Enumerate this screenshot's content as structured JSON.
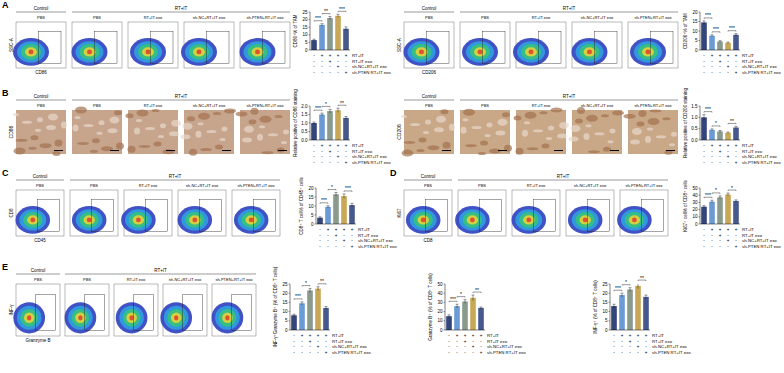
{
  "headers": [
    "Control",
    "RT+IT"
  ],
  "groups": [
    "PBS",
    "PBS",
    "RT+IT exo",
    "sh-NC+RT+IT exo",
    "sh-PTEN+RT+IT exo"
  ],
  "group_table": [
    {
      "label": "RT+IT",
      "marks": [
        "-",
        "+",
        "+",
        "+",
        "+"
      ]
    },
    {
      "label": "RT+IT exo",
      "marks": [
        "-",
        "-",
        "+",
        "-",
        "-"
      ]
    },
    {
      "label": "sh-NC+RT+IT exo",
      "marks": [
        "-",
        "-",
        "-",
        "+",
        "-"
      ]
    },
    {
      "label": "sh-PTEN RT+IT exo",
      "marks": [
        "-",
        "-",
        "-",
        "-",
        "+"
      ]
    }
  ],
  "image_panels": [
    {
      "letter": "A",
      "kind": "flow",
      "y_label": "SSC-A",
      "x_label": "CD86"
    },
    {
      "kind": "flow",
      "y_label": "SSC-A",
      "x_label": "CD206"
    },
    {
      "letter": "B",
      "kind": "ihc",
      "stain": "CD86"
    },
    {
      "kind": "ihc",
      "stain": "CD206"
    },
    {
      "letter": "C",
      "kind": "flow",
      "y_label": "CD8",
      "x_label": "CD45"
    },
    {
      "letter": "D",
      "kind": "flow",
      "y_label": "Ki67",
      "x_label": "CD8"
    },
    {
      "letter": "E",
      "kind": "flow",
      "y_label": "INF-γ",
      "x_label": "Granzyme B"
    }
  ],
  "chart_data": [
    {
      "type": "bar",
      "y_label": "CD86⁺% of TAM",
      "categories": [
        null,
        null,
        null,
        null,
        null
      ],
      "values": [
        6.5,
        16.5,
        21,
        22.5,
        14
      ],
      "errors": [
        0.6,
        0.8,
        1,
        1,
        1.2
      ],
      "colors": [
        "#34457a",
        "#6a9bd4",
        "#8a9a8c",
        "#c8a856",
        "#47598c"
      ],
      "ylim": [
        0,
        25
      ],
      "yticks": [
        0,
        5,
        10,
        15,
        20,
        25
      ],
      "grid": false,
      "annotations": [
        {
          "text": "***",
          "between": [
            0,
            1
          ]
        },
        {
          "text": "**",
          "between": [
            1,
            2
          ]
        },
        {
          "text": "***",
          "between": [
            3,
            4
          ]
        }
      ]
    },
    {
      "type": "bar",
      "y_label": "CD206⁺% of TAM",
      "categories": [
        null,
        null,
        null,
        null,
        null
      ],
      "values": [
        14.5,
        7.5,
        4.5,
        3.8,
        8
      ],
      "errors": [
        0.8,
        0.5,
        0.4,
        0.4,
        0.6
      ],
      "colors": [
        "#34457a",
        "#6a9bd4",
        "#8a9a8c",
        "#c8a856",
        "#47598c"
      ],
      "ylim": [
        0,
        20
      ],
      "yticks": [
        0,
        5,
        10,
        15,
        20
      ],
      "grid": false,
      "annotations": [
        {
          "text": "***",
          "between": [
            0,
            1
          ]
        },
        {
          "text": "***",
          "between": [
            1,
            2
          ]
        },
        {
          "text": "***",
          "between": [
            3,
            4
          ]
        }
      ]
    },
    {
      "type": "bar",
      "y_label": "Relative positive of CD86 staining",
      "categories": [
        null,
        null,
        null,
        null,
        null
      ],
      "values": [
        1.0,
        1.5,
        1.7,
        1.75,
        1.3
      ],
      "errors": [
        0.06,
        0.08,
        0.1,
        0.12,
        0.08
      ],
      "colors": [
        "#34457a",
        "#6a9bd4",
        "#8a9a8c",
        "#c8a856",
        "#47598c"
      ],
      "ylim": [
        0,
        2
      ],
      "yticks": [
        {
          "value": 0,
          "label": "0.0"
        },
        {
          "value": 0.5,
          "label": "0.5"
        },
        {
          "value": 1,
          "label": "1.0"
        },
        {
          "value": 1.5,
          "label": "1.5"
        },
        {
          "value": 2,
          "label": "2.0"
        }
      ],
      "grid": false,
      "annotations": [
        {
          "text": "***",
          "between": [
            0,
            1
          ]
        },
        {
          "text": "*",
          "between": [
            1,
            2
          ]
        },
        {
          "text": "**",
          "between": [
            3,
            4
          ]
        }
      ]
    },
    {
      "type": "bar",
      "y_label": "Relative positive of CD206 staining",
      "categories": [
        null,
        null,
        null,
        null,
        null
      ],
      "values": [
        1.0,
        0.45,
        0.38,
        0.32,
        0.55
      ],
      "errors": [
        0.12,
        0.04,
        0.04,
        0.03,
        0.05
      ],
      "colors": [
        "#34457a",
        "#6a9bd4",
        "#8a9a8c",
        "#c8a856",
        "#47598c"
      ],
      "ylim": [
        0,
        1.5
      ],
      "yticks": [
        {
          "value": 0,
          "label": "0.0"
        },
        {
          "value": 0.5,
          "label": "0.5"
        },
        {
          "value": 1,
          "label": "1.0"
        },
        {
          "value": 1.5,
          "label": "1.5"
        }
      ],
      "grid": false,
      "annotations": [
        {
          "text": "***",
          "between": [
            0,
            1
          ]
        },
        {
          "text": "*",
          "between": [
            1,
            2
          ]
        },
        {
          "text": "**",
          "between": [
            3,
            4
          ]
        }
      ]
    },
    {
      "type": "bar",
      "y_label": "CD8⁺ T cell% of CD45⁺ cells",
      "categories": [
        null,
        null,
        null,
        null,
        null
      ],
      "values": [
        3.5,
        9.5,
        16.5,
        15.5,
        10.5
      ],
      "errors": [
        0.5,
        0.6,
        1,
        1.2,
        1
      ],
      "colors": [
        "#34457a",
        "#6a9bd4",
        "#8a9a8c",
        "#c8a856",
        "#47598c"
      ],
      "ylim": [
        0,
        20
      ],
      "yticks": [
        0,
        5,
        10,
        15,
        20
      ],
      "grid": false,
      "annotations": [
        {
          "text": "***",
          "between": [
            0,
            1
          ]
        },
        {
          "text": "*",
          "between": [
            1,
            2
          ]
        },
        {
          "text": "***",
          "between": [
            3,
            4
          ]
        }
      ]
    },
    {
      "type": "bar",
      "y_label": "Ki67⁺ cell% of CD8⁺ cells",
      "categories": [
        null,
        null,
        null,
        null,
        null
      ],
      "values": [
        24,
        31,
        37,
        41,
        32
      ],
      "errors": [
        1.5,
        2,
        2,
        2,
        1.5
      ],
      "colors": [
        "#34457a",
        "#6a9bd4",
        "#8a9a8c",
        "#c8a856",
        "#47598c"
      ],
      "ylim": [
        0,
        50
      ],
      "yticks": [
        0,
        10,
        20,
        30,
        40,
        50
      ],
      "grid": false,
      "annotations": [
        {
          "text": "***",
          "between": [
            0,
            1
          ]
        },
        {
          "text": "*",
          "between": [
            1,
            2
          ]
        },
        {
          "text": "*",
          "between": [
            3,
            4
          ]
        }
      ]
    },
    {
      "type": "bar",
      "y_label": "INF-γ⁺Granzyme B⁺ (% of CD8⁺ T cells)",
      "categories": [
        null,
        null,
        null,
        null,
        null
      ],
      "values": [
        8,
        14.5,
        21.5,
        22.5,
        12
      ],
      "errors": [
        0.6,
        0.8,
        1,
        1,
        0.8
      ],
      "colors": [
        "#34457a",
        "#6a9bd4",
        "#8a9a8c",
        "#c8a856",
        "#47598c"
      ],
      "ylim": [
        0,
        25
      ],
      "yticks": [
        0,
        5,
        10,
        15,
        20,
        25
      ],
      "grid": false,
      "annotations": [
        {
          "text": "***",
          "between": [
            0,
            1
          ]
        },
        {
          "text": "*",
          "between": [
            1,
            2
          ]
        },
        {
          "text": "**",
          "between": [
            3,
            4
          ]
        }
      ]
    },
    {
      "type": "bar",
      "y_label": "Granzyme B⁺ (% of CD8⁺ T cells)",
      "categories": [
        null,
        null,
        null,
        null,
        null
      ],
      "values": [
        15,
        26,
        31,
        35,
        24
      ],
      "errors": [
        1.5,
        2,
        2,
        3,
        1
      ],
      "colors": [
        "#34457a",
        "#6a9bd4",
        "#8a9a8c",
        "#c8a856",
        "#47598c"
      ],
      "ylim": [
        0,
        50
      ],
      "yticks": [
        0,
        10,
        20,
        30,
        40,
        50
      ],
      "grid": false,
      "annotations": [
        {
          "text": "***",
          "between": [
            0,
            1
          ]
        },
        {
          "text": "*",
          "between": [
            1,
            2
          ]
        },
        {
          "text": "**",
          "between": [
            3,
            4
          ]
        }
      ]
    },
    {
      "type": "bar",
      "y_label": "INF-γ⁺ (% of CD8⁺ T cells)",
      "categories": [
        null,
        null,
        null,
        null,
        null
      ],
      "values": [
        13,
        19,
        22,
        24,
        18
      ],
      "errors": [
        1,
        1,
        1,
        1.5,
        1
      ],
      "colors": [
        "#34457a",
        "#6a9bd4",
        "#8a9a8c",
        "#c8a856",
        "#47598c"
      ],
      "ylim": [
        0,
        25
      ],
      "yticks": [
        0,
        5,
        10,
        15,
        20,
        25
      ],
      "grid": false,
      "annotations": [
        {
          "text": "***",
          "between": [
            0,
            1
          ]
        },
        {
          "text": "*",
          "between": [
            1,
            2
          ]
        },
        {
          "text": "**",
          "between": [
            3,
            4
          ]
        }
      ]
    }
  ]
}
